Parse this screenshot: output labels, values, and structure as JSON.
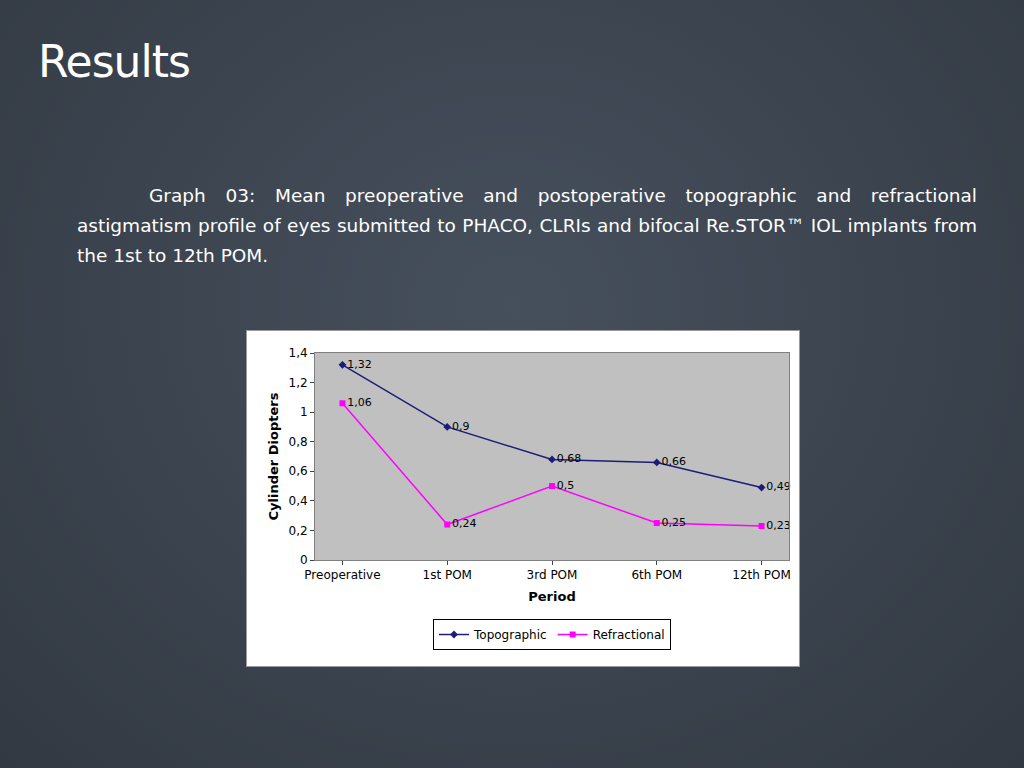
{
  "chart_data": {
    "type": "line",
    "title": "Results",
    "subtitle": "Graph 03: Mean preoperative and postoperative topographic and refractional astigmatism profile of eyes submitted to PHACO, CLRIs and bifocal Re.STOR™ IOL implants from the 1st to 12th POM.",
    "x_label": "Period",
    "y_label": "Cylinder Diopters",
    "categories": [
      "Preoperative",
      "1st POM",
      "3rd POM",
      "6th POM",
      "12th POM"
    ],
    "series": [
      {
        "name": "Topographic",
        "color": "#1c1c78",
        "marker": "diamond",
        "line_style": "solid",
        "values": [
          1.32,
          0.9,
          0.68,
          0.66,
          0.49
        ],
        "value_labels": [
          "1,32",
          "0,9",
          "0,68",
          "0,66",
          "0,49"
        ]
      },
      {
        "name": "Refractional",
        "color": "#ff00ff",
        "marker": "square",
        "line_style": "solid",
        "values": [
          1.06,
          0.24,
          0.5,
          0.25,
          0.23
        ],
        "value_labels": [
          "1,06",
          "0,24",
          "0,5",
          "0,25",
          "0,23"
        ]
      }
    ],
    "ylim": [
      0,
      1.4
    ],
    "yticks": [
      0,
      {
        "value": 0.2,
        "label": "0,2"
      },
      {
        "value": 0.4,
        "label": "0,4"
      },
      {
        "value": 0.6,
        "label": "0,6"
      },
      {
        "value": 0.8,
        "label": "0,8"
      },
      1,
      {
        "value": 1.2,
        "label": "1,2"
      },
      {
        "value": 1.4,
        "label": "1,4"
      }
    ],
    "grid": false,
    "legend": "bottom",
    "data_labels": true
  }
}
